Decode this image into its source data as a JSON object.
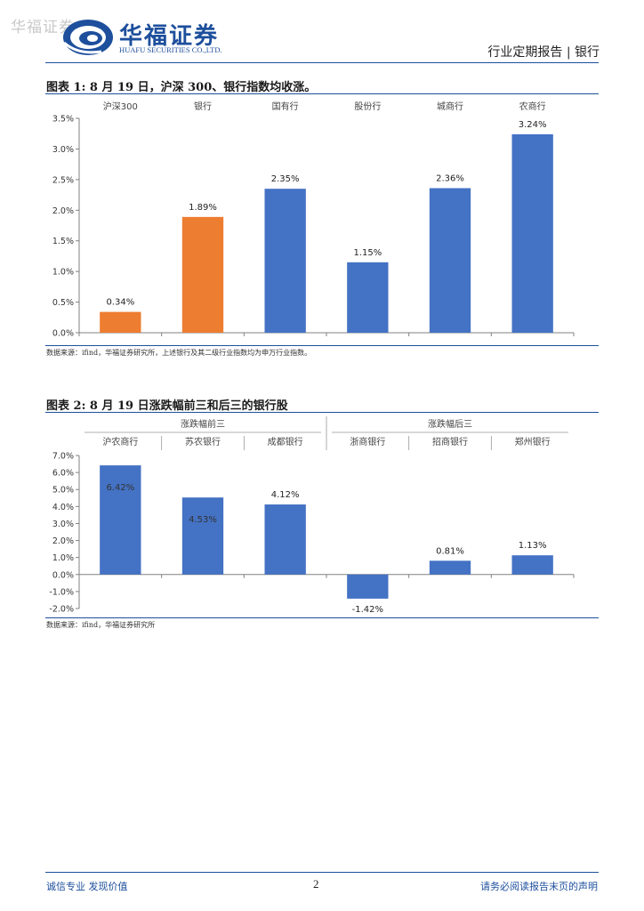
{
  "header": {
    "watermark": "华福证券",
    "logo_cn": "华福证券",
    "logo_en": "HUAFU SECURITIES CO.,LTD.",
    "report_type": "行业定期报告 | 银行"
  },
  "figure1": {
    "title": "图表 1:  8 月 19 日，沪深 300、银行指数均收涨。",
    "source": "数据来源：ifind，华福证券研究所，上述银行及其二级行业指数均为申万行业指数。"
  },
  "figure2": {
    "title": "图表 2:  8 月 19 日涨跌幅前三和后三的银行股",
    "source": "数据来源：ifind，华福证券研究所"
  },
  "chart_data": [
    {
      "type": "bar",
      "categories": [
        "沪深300",
        "银行",
        "国有行",
        "股份行",
        "城商行",
        "农商行"
      ],
      "values": [
        0.34,
        1.89,
        2.35,
        1.15,
        2.36,
        3.24
      ],
      "data_labels": [
        "0.34%",
        "1.89%",
        "2.35%",
        "1.15%",
        "2.36%",
        "3.24%"
      ],
      "bar_colors": [
        "#ED7D31",
        "#ED7D31",
        "#4472C4",
        "#4472C4",
        "#4472C4",
        "#4472C4"
      ],
      "ylim": [
        0,
        3.5
      ],
      "yticks": [
        "0.0%",
        "0.5%",
        "1.0%",
        "1.5%",
        "2.0%",
        "2.5%",
        "3.0%",
        "3.5%"
      ],
      "category_labels_position": "top",
      "grid": false
    },
    {
      "type": "bar",
      "groups": [
        {
          "name": "涨跌幅前三",
          "categories": [
            "沪农商行",
            "苏农银行",
            "成都银行"
          ]
        },
        {
          "name": "涨跌幅后三",
          "categories": [
            "浙商银行",
            "招商银行",
            "郑州银行"
          ]
        }
      ],
      "categories": [
        "沪农商行",
        "苏农银行",
        "成都银行",
        "浙商银行",
        "招商银行",
        "郑州银行"
      ],
      "values": [
        6.42,
        4.53,
        4.12,
        -1.42,
        0.81,
        1.13
      ],
      "data_labels": [
        "6.42%",
        "4.53%",
        "4.12%",
        "-1.42%",
        "0.81%",
        "1.13%"
      ],
      "bar_color": "#4472C4",
      "ylim": [
        -2,
        7
      ],
      "yticks": [
        "-2.0%",
        "-1.0%",
        "0.0%",
        "1.0%",
        "2.0%",
        "3.0%",
        "4.0%",
        "5.0%",
        "6.0%",
        "7.0%"
      ],
      "category_labels_position": "top",
      "grid": false
    }
  ],
  "footer": {
    "left": "诚信专业  发现价值",
    "page": "2",
    "right": "请务必阅读报告末页的声明"
  }
}
